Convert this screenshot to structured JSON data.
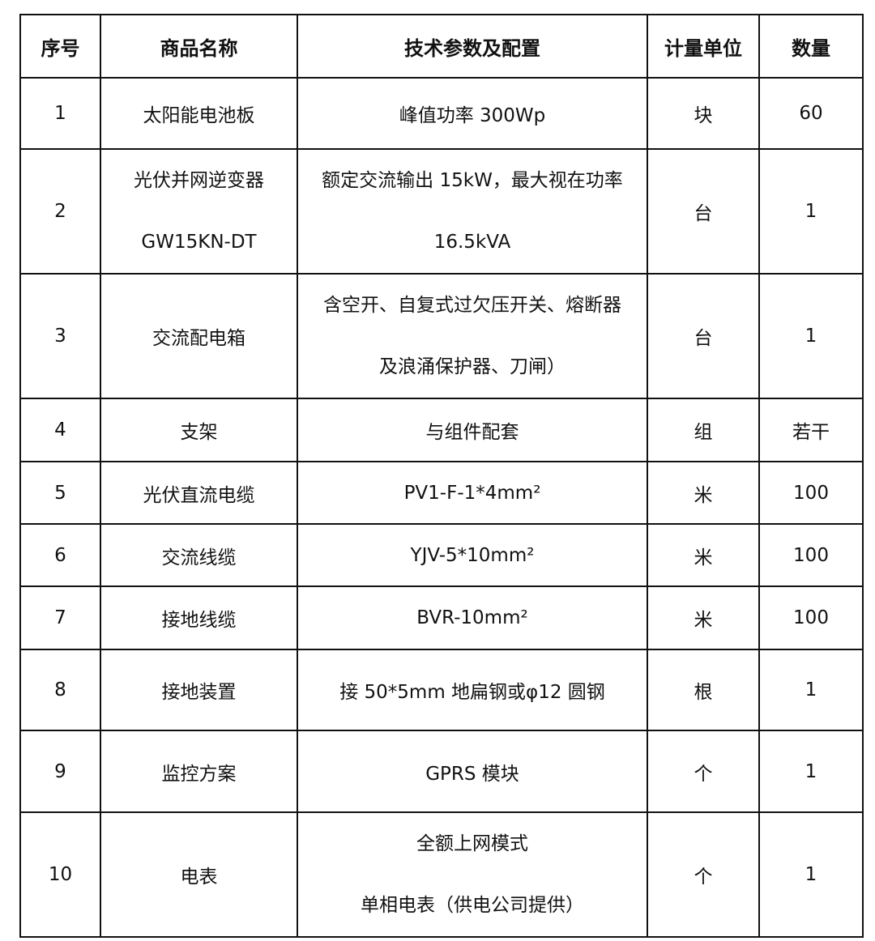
{
  "headers": [
    "序号",
    "商品名称",
    "技术参数及配置",
    "计量单位",
    "数量"
  ],
  "rows": [
    {
      "no": "1",
      "name": [
        "太阳能电池板"
      ],
      "spec": [
        "峰值功率 300Wp"
      ],
      "unit": "块",
      "qty": "60"
    },
    {
      "no": "2",
      "name": [
        "光伏并网逆变器",
        "GW15KN-DT"
      ],
      "spec": [
        "额定交流输出 15kW，最大视在功率",
        "16.5kVA"
      ],
      "unit": "台",
      "qty": "1"
    },
    {
      "no": "3",
      "name": [
        "交流配电箱"
      ],
      "spec": [
        "含空开、自复式过欠压开关、熔断器",
        "及浪涌保护器、刀闸）"
      ],
      "unit": "台",
      "qty": "1"
    },
    {
      "no": "4",
      "name": [
        "支架"
      ],
      "spec": [
        "与组件配套"
      ],
      "unit": "组",
      "qty": "若干"
    },
    {
      "no": "5",
      "name": [
        "光伏直流电缆"
      ],
      "spec": [
        "PV1-F-1*4mm²"
      ],
      "unit": "米",
      "qty": "100"
    },
    {
      "no": "6",
      "name": [
        "交流线缆"
      ],
      "spec": [
        "YJV-5*10mm²"
      ],
      "unit": "米",
      "qty": "100"
    },
    {
      "no": "7",
      "name": [
        "接地线缆"
      ],
      "spec": [
        "BVR-10mm²"
      ],
      "unit": "米",
      "qty": "100"
    },
    {
      "no": "8",
      "name": [
        "接地装置"
      ],
      "spec": [
        "接 50*5mm 地扁钢或φ12 圆钢"
      ],
      "unit": "根",
      "qty": "1"
    },
    {
      "no": "9",
      "name": [
        "监控方案"
      ],
      "spec": [
        "GPRS 模块"
      ],
      "unit": "个",
      "qty": "1"
    },
    {
      "no": "10",
      "name": [
        "电表"
      ],
      "spec": [
        "全额上网模式",
        "单相电表（供电公司提供）"
      ],
      "unit": "个",
      "qty": "1"
    }
  ]
}
